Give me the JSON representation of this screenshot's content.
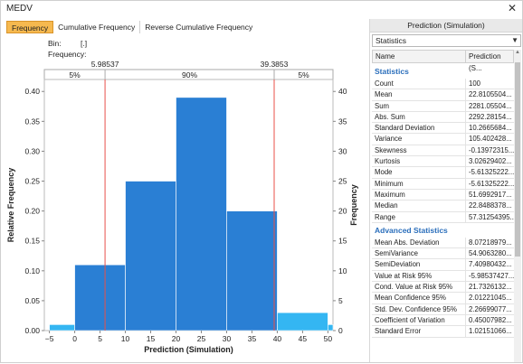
{
  "window": {
    "title": "MEDV",
    "close_glyph": "✕"
  },
  "tabs": [
    "Frequency",
    "Cumulative Frequency",
    "Reverse Cumulative Frequency"
  ],
  "bin": {
    "label": "Bin:",
    "value": "[.]"
  },
  "frequency_label": "Frequency:",
  "chart_data": {
    "type": "bar",
    "xlabel": "Prediction (Simulation)",
    "ylabel": "Relative Frequency",
    "y2label": "Frequency",
    "xlim": [
      -6,
      51
    ],
    "ylim": [
      0,
      0.42
    ],
    "y2lim": [
      0,
      42
    ],
    "xticks": [
      -5,
      0,
      5,
      10,
      15,
      20,
      25,
      30,
      35,
      40,
      45,
      50
    ],
    "yticks": [
      0.0,
      0.05,
      0.1,
      0.15,
      0.2,
      0.25,
      0.3,
      0.35,
      0.4
    ],
    "y2ticks": [
      0,
      5,
      10,
      15,
      20,
      25,
      30,
      35,
      40
    ],
    "bins": [
      {
        "x0": -5,
        "x1": 0,
        "value": 0.01
      },
      {
        "x0": 0,
        "x1": 10,
        "value": 0.11
      },
      {
        "x0": 10,
        "x1": 20,
        "value": 0.25
      },
      {
        "x0": 20,
        "x1": 30,
        "value": 0.39
      },
      {
        "x0": 30,
        "x1": 40,
        "value": 0.2
      },
      {
        "x0": 40,
        "x1": 50,
        "value": 0.03
      },
      {
        "x0": 50,
        "x1": 51,
        "value": 0.01
      }
    ],
    "markers": [
      {
        "value": 5.98537,
        "label": "5.98537"
      },
      {
        "value": 39.3853,
        "label": "39.3853"
      }
    ],
    "bands": [
      "5%",
      "90%",
      "5%"
    ],
    "colors": {
      "main": "#2a7fd4",
      "tail": "#34b6f2",
      "marker": "#e8514a"
    }
  },
  "panel": {
    "header": "Prediction (Simulation)",
    "selected": "Statistics",
    "col_name": "Name",
    "col_value": "Prediction (S...",
    "sections": [
      {
        "title": "Statistics",
        "rows": [
          [
            "Count",
            "100"
          ],
          [
            "Mean",
            "22.8105504..."
          ],
          [
            "Sum",
            "2281.05504..."
          ],
          [
            "Abs. Sum",
            "2292.28154..."
          ],
          [
            "Standard Deviation",
            "10.2665684..."
          ],
          [
            "Variance",
            "105.402428..."
          ],
          [
            "Skewness",
            "-0.13972315..."
          ],
          [
            "Kurtosis",
            "3.02629402..."
          ],
          [
            "Mode",
            "-5.61325222..."
          ],
          [
            "Minimum",
            "-5.61325222..."
          ],
          [
            "Maximum",
            "51.6992917..."
          ],
          [
            "Median",
            "22.8488378..."
          ],
          [
            "Range",
            "57.31254395..."
          ]
        ]
      },
      {
        "title": "Advanced Statistics",
        "rows": [
          [
            "Mean Abs. Deviation",
            "8.07218979..."
          ],
          [
            "SemiVariance",
            "54.9063280..."
          ],
          [
            "SemiDeviation",
            "7.40980432..."
          ],
          [
            "Value at Risk 95%",
            "-5.98537427..."
          ],
          [
            "Cond. Value at Risk 95%",
            "21.7326132..."
          ],
          [
            "Mean Confidence 95%",
            "2.01221045..."
          ],
          [
            "Std. Dev. Confidence 95%",
            "2.26699077..."
          ],
          [
            "Coefficient of Variation",
            "0.45007982..."
          ],
          [
            "Standard Error",
            "1.02151066..."
          ]
        ]
      }
    ]
  }
}
